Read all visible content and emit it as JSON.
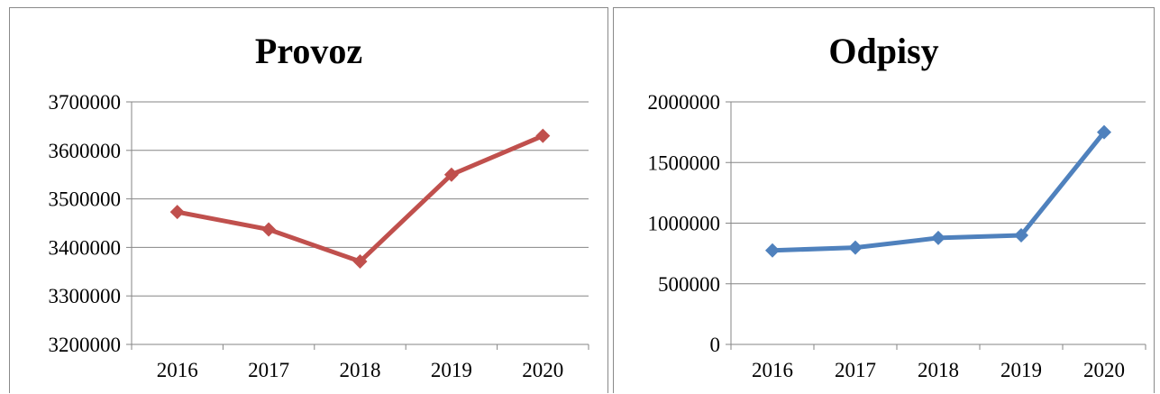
{
  "chart_data": [
    {
      "type": "line",
      "title": "Provoz",
      "categories": [
        "2016",
        "2017",
        "2018",
        "2019",
        "2020"
      ],
      "series": [
        {
          "values": [
            3473000,
            3437000,
            3371000,
            3550000,
            3630000
          ]
        }
      ],
      "ylim": [
        3200000,
        3700000
      ],
      "yticks": [
        "3200000",
        "3300000",
        "3400000",
        "3500000",
        "3600000",
        "3700000"
      ],
      "grid": true,
      "legend": "none",
      "color": "#c0504d",
      "marker": "diamond"
    },
    {
      "type": "line",
      "title": "Odpisy",
      "categories": [
        "2016",
        "2017",
        "2018",
        "2019",
        "2020"
      ],
      "series": [
        {
          "values": [
            775000,
            798000,
            878000,
            900000,
            1750000
          ]
        }
      ],
      "ylim": [
        0,
        2000000
      ],
      "yticks": [
        "0",
        "500000",
        "1000000",
        "1500000",
        "2000000"
      ],
      "grid": true,
      "legend": "none",
      "color": "#4f81bd",
      "marker": "diamond"
    }
  ]
}
